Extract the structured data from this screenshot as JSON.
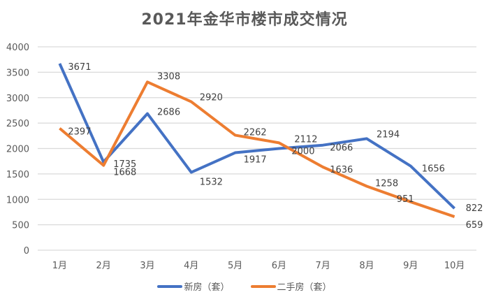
{
  "chart_data": {
    "type": "line",
    "title": "2021年金华市楼市成交情况",
    "xlabel": "",
    "ylabel": "",
    "categories": [
      "1月",
      "2月",
      "3月",
      "4月",
      "5月",
      "6月",
      "7月",
      "8月",
      "9月",
      "10月"
    ],
    "series": [
      {
        "name": "新房（套）",
        "color": "#4472C4",
        "values": [
          3671,
          1735,
          2686,
          1532,
          1917,
          2000,
          2066,
          2194,
          1656,
          822
        ]
      },
      {
        "name": "二手房（套）",
        "color": "#ED7D31",
        "values": [
          2397,
          1668,
          3308,
          2920,
          2262,
          2112,
          1636,
          1258,
          951,
          659
        ]
      }
    ],
    "ylim": [
      0,
      4000
    ],
    "yticks": [
      0,
      500,
      1000,
      1500,
      2000,
      2500,
      3000,
      3500,
      4000
    ],
    "grid": true,
    "legend_position": "bottom",
    "data_labels": true
  }
}
